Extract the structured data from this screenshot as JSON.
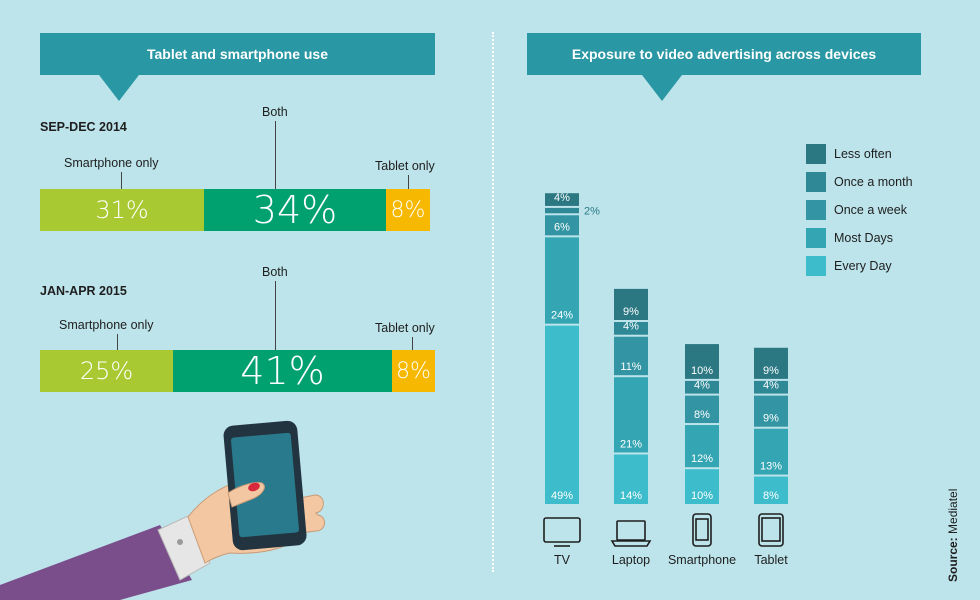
{
  "left_panel": {
    "title": "Tablet and smartphone use",
    "periods": [
      {
        "label": "SEP-DEC 2014",
        "segments": [
          {
            "name": "Smartphone only",
            "value": 31,
            "text": "31%",
            "color": "#a9c932"
          },
          {
            "name": "Both",
            "value": 34,
            "text": "34%",
            "color": "#00a06f"
          },
          {
            "name": "Tablet only",
            "value": 8,
            "text": "8%",
            "color": "#f6b800"
          }
        ]
      },
      {
        "label": "JAN-APR 2015",
        "segments": [
          {
            "name": "Smartphone only",
            "value": 25,
            "text": "25%",
            "color": "#a9c932"
          },
          {
            "name": "Both",
            "value": 41,
            "text": "41%",
            "color": "#00a06f"
          },
          {
            "name": "Tablet only",
            "value": 8,
            "text": "8%",
            "color": "#f6b800"
          }
        ]
      }
    ]
  },
  "right_panel": {
    "title": "Exposure to video advertising across devices"
  },
  "chart_data": {
    "type": "bar",
    "stacked": true,
    "categories": [
      "TV",
      "Laptop",
      "Smartphone",
      "Tablet"
    ],
    "series": [
      {
        "name": "Every Day",
        "color": "#3dbccb",
        "values": [
          49,
          14,
          10,
          8
        ]
      },
      {
        "name": "Most Days",
        "color": "#34a5b3",
        "values": [
          24,
          21,
          12,
          13
        ]
      },
      {
        "name": "Once a week",
        "color": "#3395a3",
        "values": [
          6,
          11,
          8,
          9
        ]
      },
      {
        "name": "Once a month",
        "color": "#2f8895",
        "values": [
          2,
          4,
          4,
          4
        ]
      },
      {
        "name": "Less often",
        "color": "#2b7883",
        "values": [
          4,
          9,
          10,
          9
        ]
      }
    ],
    "legend_order": [
      "Less often",
      "Once a month",
      "Once a week",
      "Most Days",
      "Every Day"
    ],
    "legend_position": "top-right",
    "grid": false
  },
  "source": {
    "prefix": "Source:",
    "text": " Mediatel"
  },
  "icons": [
    "tv-icon",
    "laptop-icon",
    "smartphone-icon",
    "tablet-icon",
    "hand-holding-phone-illustration"
  ]
}
